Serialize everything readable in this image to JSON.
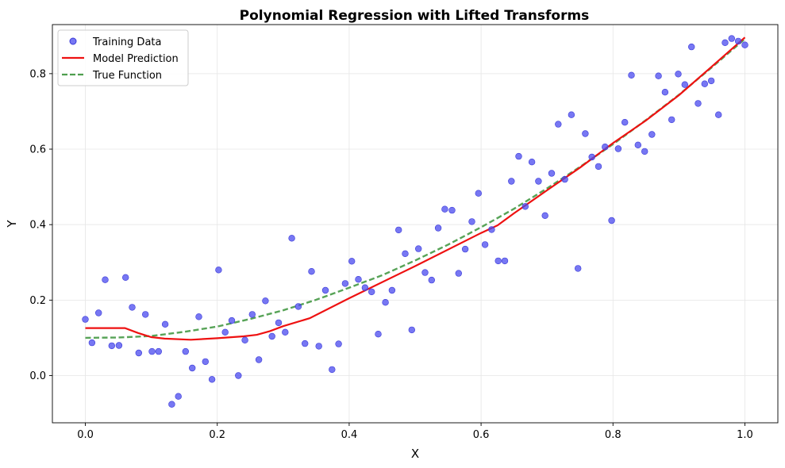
{
  "chart_data": {
    "type": "scatter",
    "title": "Polynomial Regression with Lifted Transforms",
    "xlabel": "X",
    "ylabel": "Y",
    "xlim": [
      -0.05,
      1.05
    ],
    "ylim": [
      -0.125,
      0.93
    ],
    "xticks": [
      "0.0",
      "0.2",
      "0.4",
      "0.6",
      "0.8",
      "1.0"
    ],
    "xtick_values": [
      0.0,
      0.2,
      0.4,
      0.6,
      0.8,
      1.0
    ],
    "yticks": [
      "0.0",
      "0.2",
      "0.4",
      "0.6",
      "0.8"
    ],
    "ytick_values": [
      0.0,
      0.2,
      0.4,
      0.6,
      0.8
    ],
    "grid": true,
    "legend_position": "top-left",
    "colors": {
      "training": "#4a4aef",
      "prediction": "#ee1111",
      "true_function": "#4e9e4e"
    },
    "series": [
      {
        "name": "Training Data",
        "kind": "scatter",
        "points": [
          [
            0.0,
            0.149
          ],
          [
            0.01,
            0.087
          ],
          [
            0.02,
            0.166
          ],
          [
            0.03,
            0.254
          ],
          [
            0.04,
            0.079
          ],
          [
            0.051,
            0.08
          ],
          [
            0.061,
            0.26
          ],
          [
            0.071,
            0.181
          ],
          [
            0.081,
            0.06
          ],
          [
            0.091,
            0.162
          ],
          [
            0.101,
            0.064
          ],
          [
            0.111,
            0.064
          ],
          [
            0.121,
            0.136
          ],
          [
            0.131,
            -0.076
          ],
          [
            0.141,
            -0.055
          ],
          [
            0.152,
            0.064
          ],
          [
            0.162,
            0.02
          ],
          [
            0.172,
            0.156
          ],
          [
            0.182,
            0.037
          ],
          [
            0.192,
            -0.01
          ],
          [
            0.202,
            0.28
          ],
          [
            0.212,
            0.115
          ],
          [
            0.222,
            0.146
          ],
          [
            0.232,
            0.0
          ],
          [
            0.242,
            0.094
          ],
          [
            0.253,
            0.162
          ],
          [
            0.263,
            0.042
          ],
          [
            0.273,
            0.198
          ],
          [
            0.283,
            0.104
          ],
          [
            0.293,
            0.14
          ],
          [
            0.303,
            0.115
          ],
          [
            0.313,
            0.364
          ],
          [
            0.323,
            0.183
          ],
          [
            0.333,
            0.085
          ],
          [
            0.343,
            0.276
          ],
          [
            0.354,
            0.078
          ],
          [
            0.364,
            0.226
          ],
          [
            0.374,
            0.016
          ],
          [
            0.384,
            0.084
          ],
          [
            0.394,
            0.244
          ],
          [
            0.404,
            0.303
          ],
          [
            0.414,
            0.255
          ],
          [
            0.424,
            0.233
          ],
          [
            0.434,
            0.222
          ],
          [
            0.444,
            0.11
          ],
          [
            0.455,
            0.194
          ],
          [
            0.465,
            0.226
          ],
          [
            0.475,
            0.386
          ],
          [
            0.485,
            0.323
          ],
          [
            0.495,
            0.121
          ],
          [
            0.505,
            0.336
          ],
          [
            0.515,
            0.273
          ],
          [
            0.525,
            0.253
          ],
          [
            0.535,
            0.391
          ],
          [
            0.545,
            0.441
          ],
          [
            0.556,
            0.438
          ],
          [
            0.566,
            0.271
          ],
          [
            0.576,
            0.335
          ],
          [
            0.586,
            0.408
          ],
          [
            0.596,
            0.483
          ],
          [
            0.606,
            0.347
          ],
          [
            0.616,
            0.387
          ],
          [
            0.626,
            0.304
          ],
          [
            0.636,
            0.304
          ],
          [
            0.646,
            0.515
          ],
          [
            0.657,
            0.581
          ],
          [
            0.667,
            0.448
          ],
          [
            0.677,
            0.566
          ],
          [
            0.687,
            0.515
          ],
          [
            0.697,
            0.424
          ],
          [
            0.707,
            0.536
          ],
          [
            0.717,
            0.666
          ],
          [
            0.727,
            0.52
          ],
          [
            0.737,
            0.691
          ],
          [
            0.747,
            0.284
          ],
          [
            0.758,
            0.641
          ],
          [
            0.768,
            0.579
          ],
          [
            0.778,
            0.554
          ],
          [
            0.788,
            0.606
          ],
          [
            0.798,
            0.411
          ],
          [
            0.808,
            0.601
          ],
          [
            0.818,
            0.671
          ],
          [
            0.828,
            0.796
          ],
          [
            0.838,
            0.611
          ],
          [
            0.848,
            0.594
          ],
          [
            0.859,
            0.639
          ],
          [
            0.869,
            0.794
          ],
          [
            0.879,
            0.751
          ],
          [
            0.889,
            0.678
          ],
          [
            0.899,
            0.799
          ],
          [
            0.909,
            0.771
          ],
          [
            0.919,
            0.871
          ],
          [
            0.929,
            0.721
          ],
          [
            0.939,
            0.773
          ],
          [
            0.949,
            0.781
          ],
          [
            0.96,
            0.691
          ],
          [
            0.97,
            0.882
          ],
          [
            0.98,
            0.893
          ],
          [
            0.99,
            0.886
          ],
          [
            1.0,
            0.876
          ]
        ]
      },
      {
        "name": "Model Prediction",
        "kind": "line",
        "points": [
          [
            0.0,
            0.126
          ],
          [
            0.06,
            0.126
          ],
          [
            0.08,
            0.113
          ],
          [
            0.1,
            0.102
          ],
          [
            0.12,
            0.098
          ],
          [
            0.16,
            0.095
          ],
          [
            0.2,
            0.099
          ],
          [
            0.24,
            0.104
          ],
          [
            0.26,
            0.108
          ],
          [
            0.28,
            0.118
          ],
          [
            0.3,
            0.131
          ],
          [
            0.34,
            0.152
          ],
          [
            0.4,
            0.205
          ],
          [
            0.5,
            0.29
          ],
          [
            0.6,
            0.378
          ],
          [
            0.625,
            0.398
          ],
          [
            0.65,
            0.43
          ],
          [
            0.7,
            0.491
          ],
          [
            0.75,
            0.551
          ],
          [
            0.8,
            0.616
          ],
          [
            0.85,
            0.676
          ],
          [
            0.9,
            0.743
          ],
          [
            0.95,
            0.819
          ],
          [
            1.0,
            0.896
          ]
        ]
      },
      {
        "name": "True Function",
        "kind": "dashed-line",
        "points": [
          [
            0.0,
            0.1
          ],
          [
            0.05,
            0.101
          ],
          [
            0.1,
            0.105
          ],
          [
            0.15,
            0.116
          ],
          [
            0.2,
            0.13
          ],
          [
            0.25,
            0.15
          ],
          [
            0.3,
            0.173
          ],
          [
            0.35,
            0.201
          ],
          [
            0.4,
            0.233
          ],
          [
            0.45,
            0.266
          ],
          [
            0.5,
            0.305
          ],
          [
            0.55,
            0.347
          ],
          [
            0.6,
            0.393
          ],
          [
            0.65,
            0.442
          ],
          [
            0.7,
            0.496
          ],
          [
            0.75,
            0.553
          ],
          [
            0.8,
            0.613
          ],
          [
            0.85,
            0.677
          ],
          [
            0.9,
            0.744
          ],
          [
            0.95,
            0.817
          ],
          [
            1.0,
            0.892
          ]
        ]
      }
    ]
  }
}
